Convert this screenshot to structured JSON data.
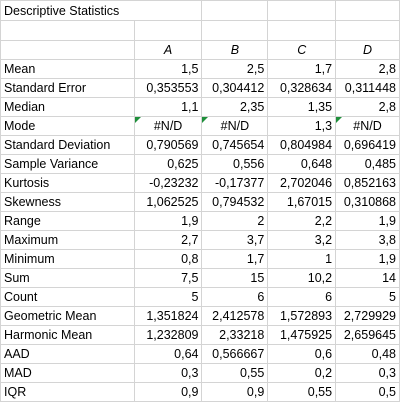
{
  "title": "Descriptive Statistics",
  "columns": [
    "A",
    "B",
    "C",
    "D"
  ],
  "rows": [
    {
      "label": "Mean",
      "values": [
        "1,5",
        "2,5",
        "1,7",
        "2,8"
      ]
    },
    {
      "label": "Standard Error",
      "values": [
        "0,353553",
        "0,304412",
        "0,328634",
        "0,311448"
      ]
    },
    {
      "label": "Median",
      "values": [
        "1,1",
        "2,35",
        "1,35",
        "2,8"
      ]
    },
    {
      "label": "Mode",
      "values": [
        "#N/D",
        "#N/D",
        "1,3",
        "#N/D"
      ],
      "error_markers": [
        true,
        true,
        false,
        true
      ]
    },
    {
      "label": "Standard Deviation",
      "values": [
        "0,790569",
        "0,745654",
        "0,804984",
        "0,696419"
      ]
    },
    {
      "label": "Sample Variance",
      "values": [
        "0,625",
        "0,556",
        "0,648",
        "0,485"
      ]
    },
    {
      "label": "Kurtosis",
      "values": [
        "-0,23232",
        "-0,17377",
        "2,702046",
        "0,852163"
      ]
    },
    {
      "label": "Skewness",
      "values": [
        "1,062525",
        "0,794532",
        "1,67015",
        "0,310868"
      ]
    },
    {
      "label": "Range",
      "values": [
        "1,9",
        "2",
        "2,2",
        "1,9"
      ]
    },
    {
      "label": "Maximum",
      "values": [
        "2,7",
        "3,7",
        "3,2",
        "3,8"
      ]
    },
    {
      "label": "Minimum",
      "values": [
        "0,8",
        "1,7",
        "1",
        "1,9"
      ]
    },
    {
      "label": "Sum",
      "values": [
        "7,5",
        "15",
        "10,2",
        "14"
      ]
    },
    {
      "label": "Count",
      "values": [
        "5",
        "6",
        "6",
        "5"
      ]
    },
    {
      "label": "Geometric Mean",
      "values": [
        "1,351824",
        "2,412578",
        "1,572893",
        "2,729929"
      ]
    },
    {
      "label": "Harmonic Mean",
      "values": [
        "1,232809",
        "2,33218",
        "1,475925",
        "2,659645"
      ]
    },
    {
      "label": "AAD",
      "values": [
        "0,64",
        "0,566667",
        "0,6",
        "0,48"
      ]
    },
    {
      "label": "MAD",
      "values": [
        "0,3",
        "0,55",
        "0,2",
        "0,3"
      ]
    },
    {
      "label": "IQR",
      "values": [
        "0,9",
        "0,9",
        "0,55",
        "0,5"
      ]
    }
  ],
  "colors": {
    "gridline": "#d4d4d4",
    "error_indicator": "#1e8f3a"
  }
}
